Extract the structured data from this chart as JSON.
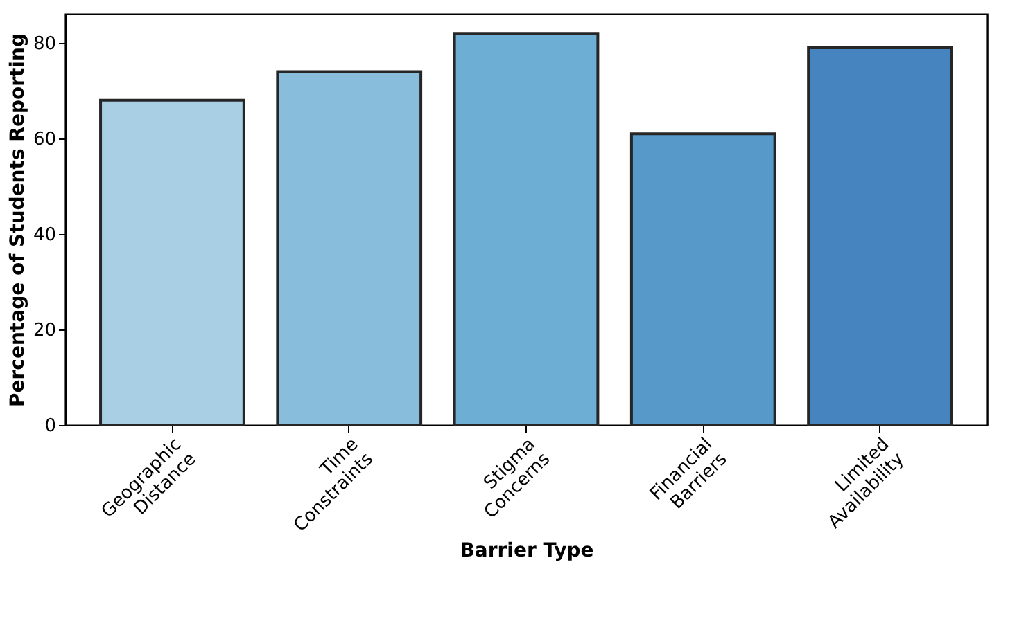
{
  "chart_data": {
    "type": "bar",
    "xlabel": "Barrier Type",
    "ylabel": "Percentage of Students Reporting",
    "categories": [
      "Geographic Distance",
      "Time Constraints",
      "Stigma Concerns",
      "Financial Barriers",
      "Limited Availability"
    ],
    "values": [
      68,
      74,
      82,
      61,
      79
    ],
    "colors": [
      "#a9cfe5",
      "#88bedc",
      "#6daed5",
      "#5799c9",
      "#4584be"
    ],
    "ylim": [
      0,
      86.1
    ],
    "yticks": [
      0,
      20,
      40,
      60,
      80
    ],
    "grid": false
  }
}
